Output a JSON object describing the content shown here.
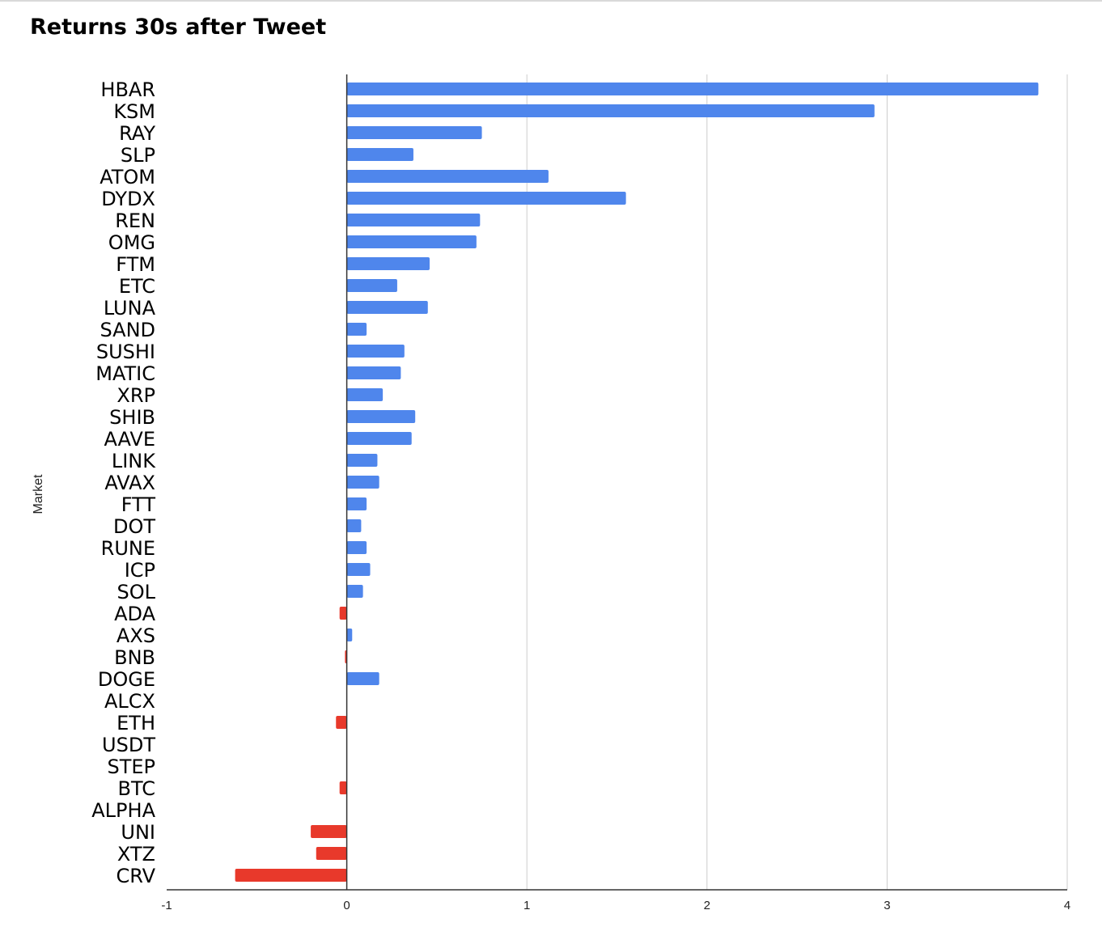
{
  "chart_data": {
    "type": "bar",
    "orientation": "horizontal",
    "title": "Returns 30s after Tweet",
    "ylabel": "Market",
    "xlabel": "",
    "xlim": [
      -1,
      4
    ],
    "xticks": [
      -1,
      0,
      1,
      2,
      3,
      4
    ],
    "grid": true,
    "legend": "none",
    "colors": {
      "positive": "#4f86ec",
      "negative": "#e8392b"
    },
    "categories": [
      "HBAR",
      "KSM",
      "RAY",
      "SLP",
      "ATOM",
      "DYDX",
      "REN",
      "OMG",
      "FTM",
      "ETC",
      "LUNA",
      "SAND",
      "SUSHI",
      "MATIC",
      "XRP",
      "SHIB",
      "AAVE",
      "LINK",
      "AVAX",
      "FTT",
      "DOT",
      "RUNE",
      "ICP",
      "SOL",
      "ADA",
      "AXS",
      "BNB",
      "DOGE",
      "ALCX",
      "ETH",
      "USDT",
      "STEP",
      "BTC",
      "ALPHA",
      "UNI",
      "XTZ",
      "CRV"
    ],
    "values": [
      3.84,
      2.93,
      0.75,
      0.37,
      1.12,
      1.55,
      0.74,
      0.72,
      0.46,
      0.28,
      0.45,
      0.11,
      0.32,
      0.3,
      0.2,
      0.38,
      0.36,
      0.17,
      0.18,
      0.11,
      0.08,
      0.11,
      0.13,
      0.09,
      -0.04,
      0.03,
      -0.01,
      0.18,
      0,
      -0.06,
      0,
      0,
      -0.04,
      0,
      -0.2,
      -0.17,
      -0.62
    ]
  }
}
